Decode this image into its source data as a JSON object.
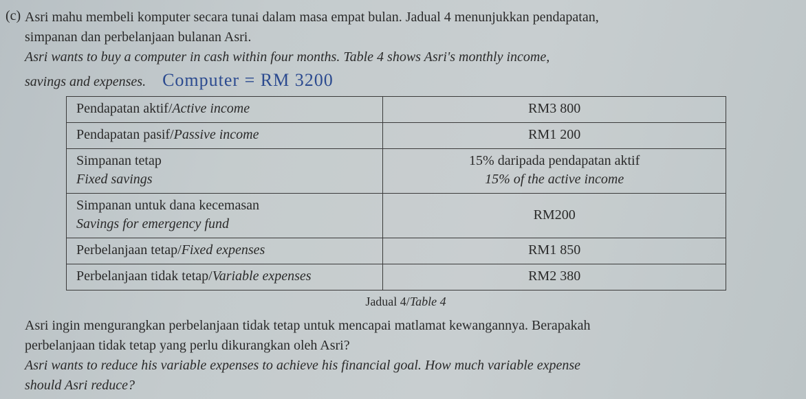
{
  "question": {
    "label": "(c)",
    "line1_ms": "Asri mahu membeli komputer secara tunai dalam masa empat bulan. Jadual 4 menunjukkan pendapatan,",
    "line2_ms": "simpanan dan perbelanjaan bulanan Asri.",
    "line1_en": "Asri wants to buy a computer in cash within four months. Table 4 shows Asri's monthly income,",
    "line2_en_a": "savings and expenses.",
    "handwritten": "Computer = RM 3200"
  },
  "table": {
    "rows": [
      {
        "label_ms": "Pendapatan aktif/",
        "label_en": "Active income",
        "value_ms": "RM3 800",
        "value_en": ""
      },
      {
        "label_ms": "Pendapatan pasif/",
        "label_en": "Passive income",
        "value_ms": "RM1 200",
        "value_en": ""
      },
      {
        "label_ms": "Simpanan tetap",
        "label_en": "Fixed savings",
        "value_ms": "15% daripada pendapatan aktif",
        "value_en": "15% of the active income"
      },
      {
        "label_ms": "Simpanan untuk dana kecemasan",
        "label_en": "Savings for emergency fund",
        "value_ms": "RM200",
        "value_en": ""
      },
      {
        "label_ms": "Perbelanjaan tetap/",
        "label_en": "Fixed expenses",
        "value_ms": "RM1 850",
        "value_en": ""
      },
      {
        "label_ms": "Perbelanjaan tidak tetap/",
        "label_en": "Variable expenses",
        "value_ms": "RM2 380",
        "value_en": ""
      }
    ],
    "caption_ms": "Jadual 4/",
    "caption_en": "Table 4"
  },
  "prompt": {
    "line1_ms": "Asri ingin mengurangkan perbelanjaan tidak tetap untuk mencapai matlamat kewangannya. Berapakah",
    "line2_ms": "perbelanjaan tidak tetap yang perlu dikurangkan oleh Asri?",
    "line1_en": "Asri wants to reduce his variable expenses to achieve his financial goal. How much variable expense",
    "line2_en": "should Asri reduce?"
  }
}
